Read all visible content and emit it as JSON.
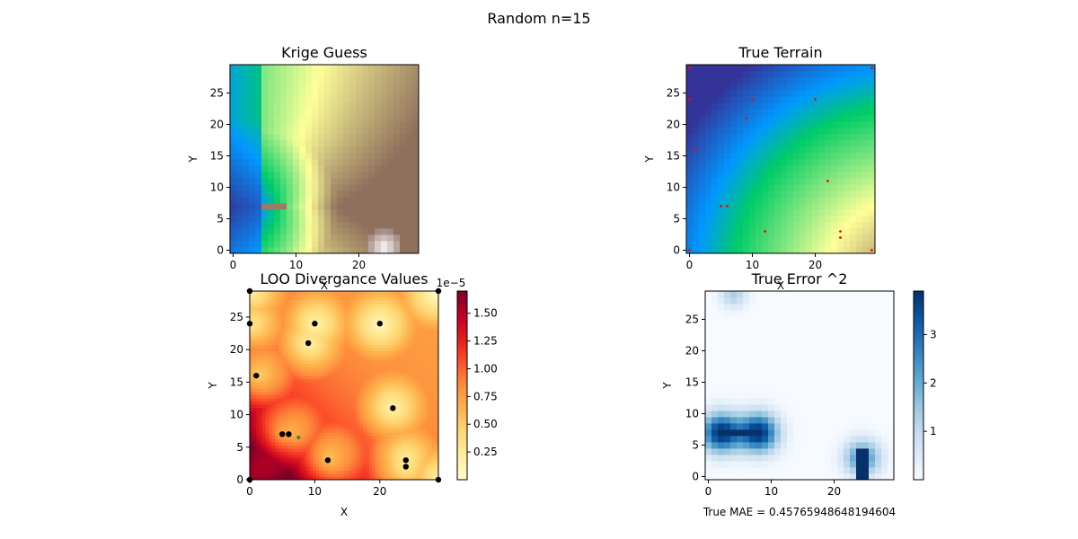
{
  "figure": {
    "suptitle": "Random n=15",
    "footer": "True MAE = 0.45765948648194604"
  },
  "chart_data": [
    {
      "id": "krige",
      "type": "heatmap",
      "title": "Krige Guess",
      "xlabel": "X",
      "ylabel": "Y",
      "xlim": [
        -0.5,
        29.5
      ],
      "ylim": [
        -0.5,
        29.5
      ],
      "xticks": [
        0,
        10,
        20
      ],
      "yticks": [
        0,
        5,
        10,
        15,
        20,
        25
      ],
      "colormap": "terrain",
      "grid_size": 30
    },
    {
      "id": "true",
      "type": "heatmap",
      "title": "True Terrain",
      "xlabel": "X",
      "ylabel": "Y",
      "xlim": [
        -0.5,
        29.5
      ],
      "ylim": [
        -0.5,
        29.5
      ],
      "xticks": [
        0,
        10,
        20
      ],
      "yticks": [
        0,
        5,
        10,
        15,
        20,
        25
      ],
      "colormap": "terrain",
      "grid_size": 30,
      "sample_points": [
        [
          0,
          29
        ],
        [
          29,
          29
        ],
        [
          1,
          16
        ],
        [
          10,
          24
        ],
        [
          9,
          21
        ],
        [
          20,
          24
        ],
        [
          22,
          11
        ],
        [
          5,
          7
        ],
        [
          6,
          7
        ],
        [
          12,
          3
        ],
        [
          24,
          3
        ],
        [
          24,
          2
        ],
        [
          29,
          0
        ],
        [
          0,
          0
        ],
        [
          0,
          24
        ]
      ],
      "point_color": "#ff0000"
    },
    {
      "id": "loo",
      "type": "heatmap",
      "title": "LOO Divergance Values",
      "xlabel": "X",
      "ylabel": "Y",
      "xlim": [
        0,
        29
      ],
      "ylim": [
        0,
        29
      ],
      "xticks": [
        0,
        10,
        20
      ],
      "yticks": [
        0,
        5,
        10,
        15,
        20,
        25
      ],
      "colormap": "YlOrRd",
      "colorbar": {
        "min": 0.0,
        "max": 1.7,
        "ticks": [
          "0.25",
          "0.50",
          "0.75",
          "1.00",
          "1.25",
          "1.50"
        ],
        "tick_values": [
          0.25,
          0.5,
          0.75,
          1.0,
          1.25,
          1.5
        ],
        "offset_text": "1e−5"
      },
      "sample_points": [
        [
          0,
          29
        ],
        [
          29,
          29
        ],
        [
          1,
          16
        ],
        [
          10,
          24
        ],
        [
          9,
          21
        ],
        [
          20,
          24
        ],
        [
          22,
          11
        ],
        [
          5,
          7
        ],
        [
          6,
          7
        ],
        [
          12,
          3
        ],
        [
          24,
          3
        ],
        [
          24,
          2
        ],
        [
          29,
          0
        ],
        [
          0,
          0
        ],
        [
          0,
          24
        ]
      ],
      "highlight_point": [
        7.5,
        6.5
      ],
      "point_color": "#000000",
      "highlight_color": "#2e8b2e"
    },
    {
      "id": "error",
      "type": "heatmap",
      "title": "True Error ^2",
      "xlabel": "",
      "ylabel": "Y",
      "xlim": [
        -0.5,
        29.5
      ],
      "ylim": [
        -0.5,
        29.5
      ],
      "xticks": [
        0,
        10,
        20
      ],
      "yticks": [
        0,
        5,
        10,
        15,
        20,
        25
      ],
      "colormap": "Blues",
      "grid_size": 30,
      "colorbar": {
        "min": 0.0,
        "max": 3.9,
        "ticks": [
          "1",
          "2",
          "3"
        ],
        "tick_values": [
          1,
          2,
          3
        ]
      }
    }
  ]
}
